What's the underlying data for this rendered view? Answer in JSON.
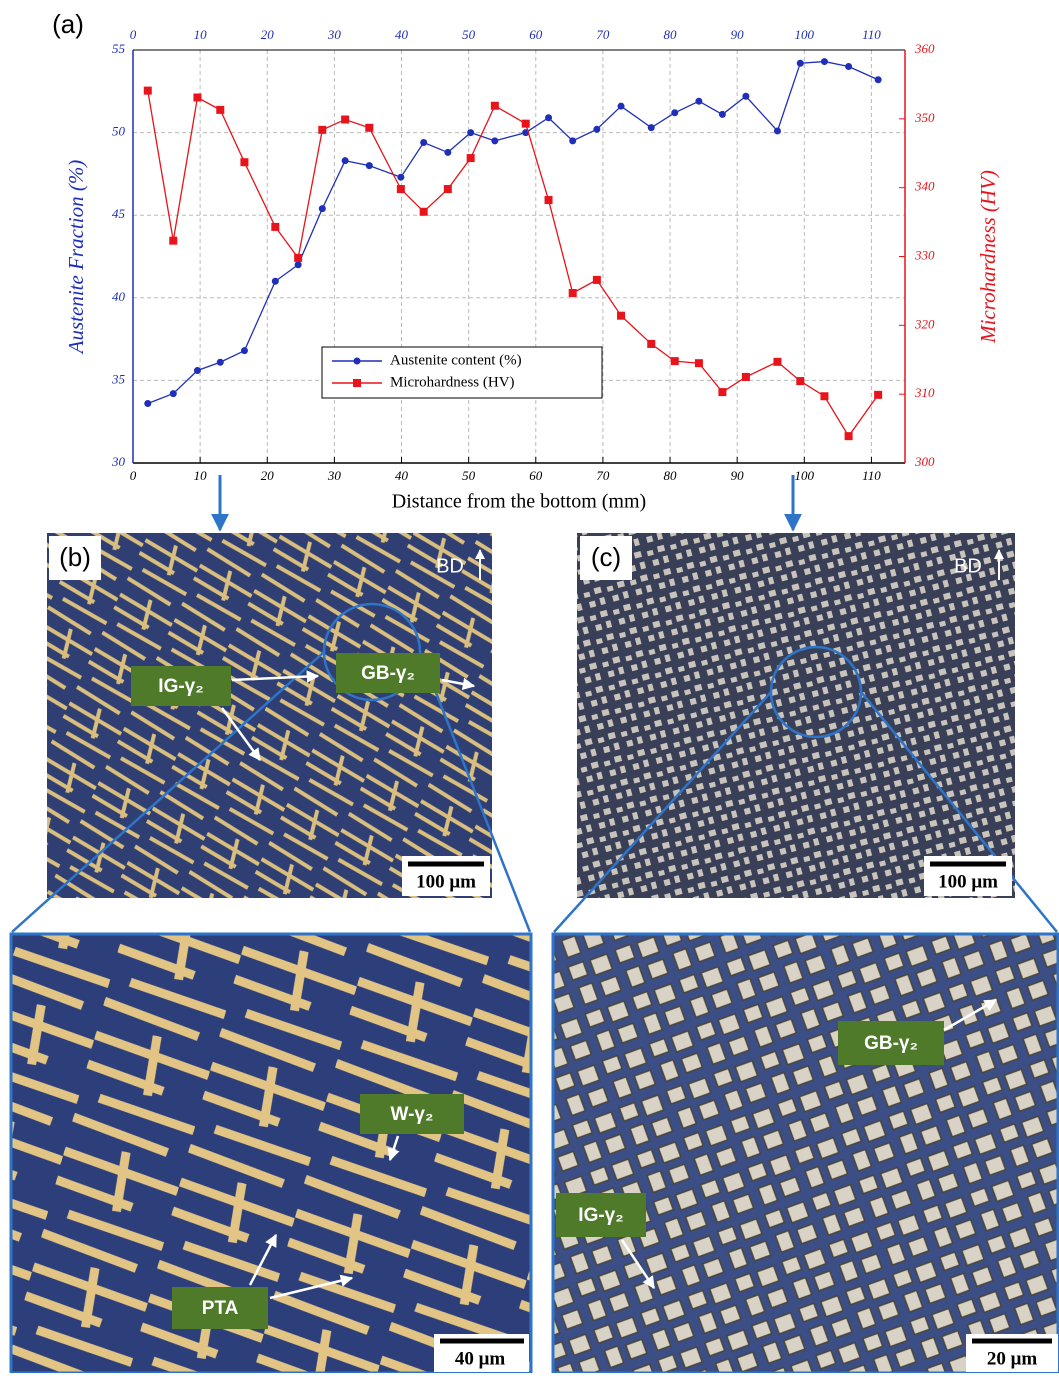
{
  "chart_data": {
    "type": "line",
    "panel_label": "(a)",
    "x_label": "Distance from the bottom (mm)",
    "y_label": "Austenite Fraction (%)",
    "y2_label": "Microhardness (HV)",
    "x": [
      2.2,
      6.0,
      9.6,
      13.0,
      16.6,
      21.2,
      24.6,
      28.2,
      31.6,
      35.2,
      39.9,
      43.3,
      46.9,
      50.3,
      53.9,
      58.5,
      61.9,
      65.5,
      69.1,
      72.7,
      77.2,
      80.7,
      84.3,
      87.8,
      91.3,
      96.0,
      99.4,
      103.0,
      106.6,
      111.0
    ],
    "series": [
      {
        "name": "Austenite content (%)",
        "color": "#1f2fb8",
        "marker": "circle",
        "values": [
          33.6,
          34.2,
          35.6,
          36.1,
          36.8,
          41.0,
          42.0,
          45.4,
          48.3,
          48.0,
          47.3,
          49.4,
          48.8,
          50.0,
          49.5,
          50.0,
          50.9,
          49.5,
          50.2,
          51.6,
          50.3,
          51.2,
          51.9,
          51.1,
          52.2,
          50.1,
          54.2,
          54.3,
          54.0,
          53.2
        ]
      },
      {
        "name": "Microhardness (HV)",
        "color": "#e8141b",
        "marker": "square",
        "axis": "y2",
        "values": [
          354.1,
          332.3,
          353.1,
          351.3,
          343.7,
          334.3,
          329.8,
          348.4,
          349.9,
          348.7,
          339.8,
          336.5,
          339.8,
          344.3,
          351.9,
          349.3,
          338.2,
          324.7,
          326.6,
          321.4,
          317.3,
          314.8,
          314.5,
          310.3,
          312.5,
          314.7,
          311.9,
          309.7,
          303.9,
          309.9
        ]
      }
    ],
    "xlim": [
      0,
      115
    ],
    "xticks": [
      0,
      10,
      20,
      30,
      40,
      50,
      60,
      70,
      80,
      90,
      100,
      110
    ],
    "ylim": [
      30,
      55
    ],
    "yticks": [
      30,
      35,
      40,
      45,
      50,
      55
    ],
    "y2lim": [
      300,
      360
    ],
    "y2ticks": [
      300,
      310,
      320,
      330,
      340,
      350,
      360
    ],
    "grid": true,
    "legend_position": "lower center"
  },
  "panels": [
    {
      "label": "(b)",
      "bd": "BD",
      "scale": "100 μm"
    },
    {
      "label": "(c)",
      "bd": "BD",
      "scale": "100 μm"
    }
  ],
  "zoom_panels": [
    {
      "scale": "40 μm",
      "annotations": [
        "GB-γ₂",
        "IG-γ₂",
        "W-γ₂",
        "PTA"
      ]
    },
    {
      "scale": "20 μm",
      "annotations": [
        "GB-γ₂",
        "IG-γ₂"
      ]
    }
  ]
}
